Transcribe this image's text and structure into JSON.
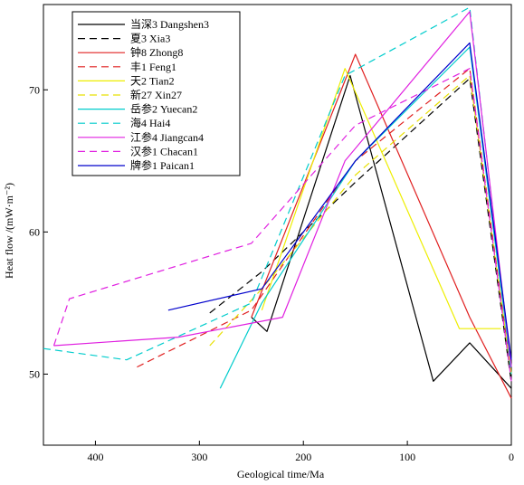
{
  "chart_data": {
    "type": "line",
    "xlabel": "Geological time/Ma",
    "ylabel": "Heat flow /(mW·m⁻²)",
    "xlim": [
      450,
      0
    ],
    "ylim": [
      45,
      76
    ],
    "x_reversed": true,
    "x_ticks": [
      400,
      300,
      200,
      100,
      0
    ],
    "x_tick_labels": [
      "400",
      "300",
      "200",
      "100",
      "0"
    ],
    "y_ticks": [
      50,
      60,
      70
    ],
    "y_tick_labels": [
      "50",
      "60",
      "70"
    ],
    "grid": false,
    "legend_position": "top-left",
    "series": [
      {
        "name": "当深3 Dangshen3",
        "color": "#000000",
        "dash": "solid",
        "x": [
          250,
          235,
          155,
          75,
          40,
          0
        ],
        "y": [
          54,
          53,
          71,
          49.5,
          52.2,
          49
        ]
      },
      {
        "name": "夏3 Xia3",
        "color": "#000000",
        "dash": "dashed",
        "x": [
          290,
          240,
          150,
          40,
          0
        ],
        "y": [
          54.3,
          57.2,
          63.5,
          70.8,
          49.4
        ]
      },
      {
        "name": "钟8 Zhong8",
        "color": "#e02020",
        "dash": "solid",
        "x": [
          250,
          150,
          40,
          0
        ],
        "y": [
          54,
          72.5,
          54,
          48.3
        ]
      },
      {
        "name": "丰1 Feng1",
        "color": "#e02020",
        "dash": "dashed",
        "x": [
          360,
          250,
          150,
          40,
          0
        ],
        "y": [
          50.5,
          54.5,
          65,
          71.5,
          50
        ]
      },
      {
        "name": "天2 Tian2",
        "color": "#eeee00",
        "dash": "solid",
        "x": [
          240,
          160,
          50,
          10
        ],
        "y": [
          54.5,
          71.5,
          53.2,
          53.2
        ]
      },
      {
        "name": "新27 Xin27",
        "color": "#e8e000",
        "dash": "dashed",
        "x": [
          290,
          240,
          150,
          40,
          0
        ],
        "y": [
          52,
          56,
          64,
          71,
          50
        ]
      },
      {
        "name": "岳参2 Yuecan2",
        "color": "#00cccc",
        "dash": "solid",
        "x": [
          280,
          240,
          150,
          40,
          0
        ],
        "y": [
          49,
          55,
          65,
          73,
          50.5
        ]
      },
      {
        "name": "海4 Hai4",
        "color": "#00cccc",
        "dash": "dashed",
        "x": [
          450,
          370,
          250,
          160,
          40,
          0
        ],
        "y": [
          51.8,
          51,
          55,
          71,
          75.8,
          50
        ]
      },
      {
        "name": "江参4 Jiangcan4",
        "color": "#e020e0",
        "dash": "solid",
        "x": [
          440,
          320,
          220,
          160,
          40,
          0
        ],
        "y": [
          52,
          52.6,
          54,
          65,
          75.5,
          50.5
        ]
      },
      {
        "name": "汉参1 Chacan1",
        "color": "#e020e0",
        "dash": "dashed",
        "x": [
          440,
          425,
          250,
          150,
          40,
          0
        ],
        "y": [
          52,
          55.3,
          59.2,
          67.5,
          71.5,
          49.5
        ]
      },
      {
        "name": "牌参1 Paican1",
        "color": "#0000cc",
        "dash": "solid",
        "x": [
          330,
          240,
          150,
          40,
          0
        ],
        "y": [
          54.5,
          56,
          65,
          73.3,
          51
        ]
      }
    ]
  }
}
